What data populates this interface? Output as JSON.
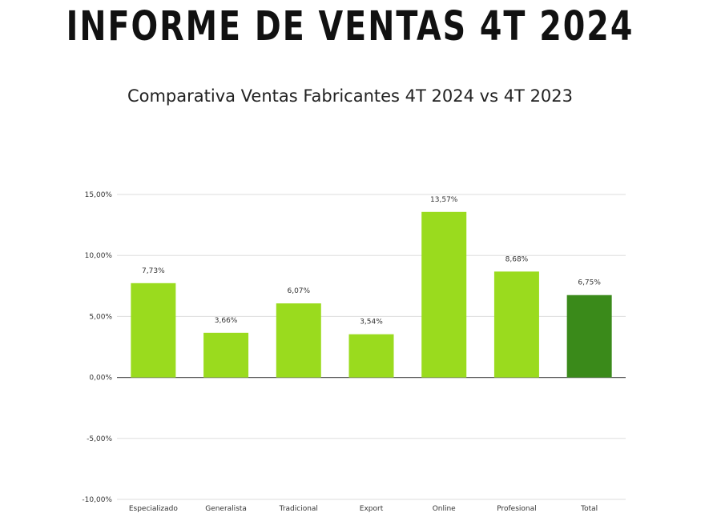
{
  "page": {
    "title": "INFORME DE VENTAS 4T 2024"
  },
  "chart_data": {
    "type": "bar",
    "title": "Comparativa Ventas Fabricantes 4T 2024 vs 4T 2023",
    "xlabel": "",
    "ylabel": "",
    "categories": [
      "Especializado",
      "Generalista",
      "Tradicional",
      "Export",
      "Online",
      "Profesional",
      "Total"
    ],
    "values": [
      7.73,
      3.66,
      6.07,
      3.54,
      13.57,
      8.68,
      6.75
    ],
    "value_labels": [
      "7,73%",
      "3,66%",
      "6,07%",
      "3,54%",
      "13,57%",
      "8,68%",
      "6,75%"
    ],
    "ylim": [
      -10,
      15
    ],
    "yticks": [
      15,
      10,
      5,
      0,
      -5,
      -10
    ],
    "ytick_labels": [
      "15,00%",
      "10,00%",
      "5,00%",
      "0,00%",
      "-5,00%",
      "-10,00%"
    ],
    "grid": true,
    "legend": "none",
    "colors": {
      "bar": "#9ADB1E",
      "highlight": "#3A8A1A",
      "grid": "#DDDDDD",
      "axis": "#555555"
    },
    "highlight_category": "Total"
  }
}
